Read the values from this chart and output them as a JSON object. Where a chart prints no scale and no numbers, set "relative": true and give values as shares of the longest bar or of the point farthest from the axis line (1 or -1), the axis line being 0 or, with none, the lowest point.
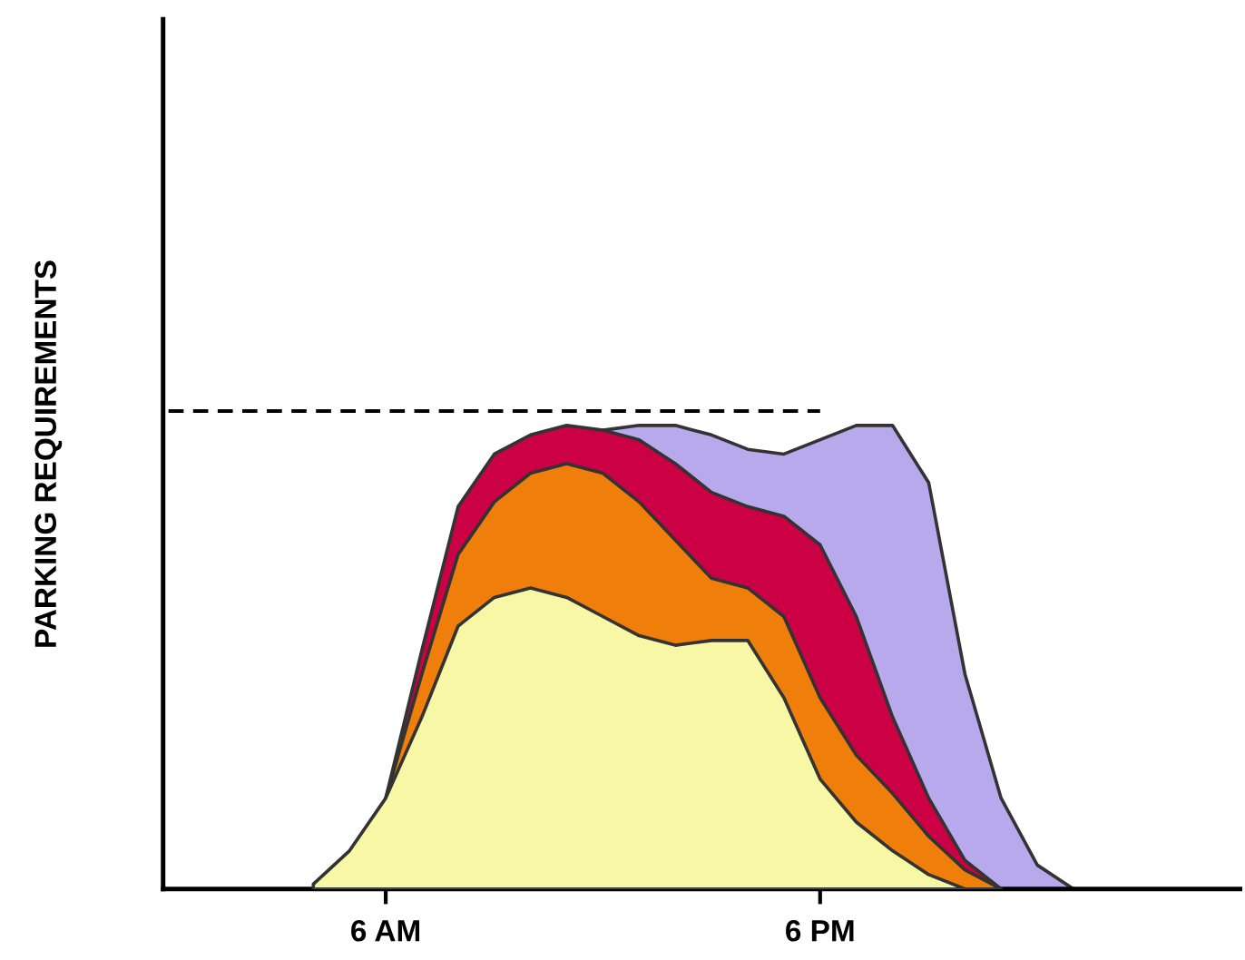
{
  "chart_data": {
    "type": "area",
    "relative": true,
    "ylabel": "PARKING REQUIREMENTS",
    "tick_labels": "x",
    "grid": false,
    "legend": false,
    "categories": [
      null,
      null,
      null,
      null,
      null,
      null,
      "6 AM",
      null,
      null,
      null,
      null,
      null,
      null,
      null,
      null,
      null,
      null,
      null,
      "6 PM",
      null,
      null,
      null,
      null,
      null,
      null,
      null,
      null,
      null,
      null,
      null
    ],
    "series": [
      {
        "color": "#b8a8ec",
        "values": [
          null,
          null,
          null,
          null,
          null,
          null,
          null,
          null,
          null,
          null,
          null,
          null,
          0.96,
          0.97,
          0.97,
          0.95,
          0.92,
          0.91,
          0.94,
          0.97,
          0.97,
          0.85,
          0.45,
          0.19,
          0.05,
          0,
          null,
          null,
          null,
          null
        ]
      },
      {
        "color": "#cc0044",
        "values": [
          null,
          null,
          null,
          null,
          null,
          null,
          0.19,
          0.5,
          0.8,
          0.91,
          0.95,
          0.97,
          0.96,
          0.94,
          0.89,
          0.83,
          0.8,
          0.78,
          0.72,
          0.57,
          0.36,
          0.19,
          0.06,
          0,
          null,
          null,
          null,
          null,
          null,
          null
        ]
      },
      {
        "color": "#f07e0a",
        "values": [
          null,
          null,
          null,
          null,
          null,
          null,
          0.19,
          0.45,
          0.7,
          0.81,
          0.87,
          0.89,
          0.87,
          0.81,
          0.73,
          0.65,
          0.63,
          0.57,
          0.4,
          0.28,
          0.2,
          0.11,
          0.04,
          0,
          null,
          null,
          null,
          null,
          null,
          null
        ]
      },
      {
        "color": "#f7f7a6",
        "values": [
          null,
          null,
          null,
          null,
          0.01,
          0.08,
          0.19,
          0.36,
          0.55,
          0.61,
          0.63,
          0.61,
          0.57,
          0.53,
          0.51,
          0.52,
          0.52,
          0.4,
          0.23,
          0.14,
          0.08,
          0.03,
          0,
          null,
          null,
          null,
          null,
          null,
          null,
          null
        ]
      },
      {
        "type": "line",
        "color": "#000000",
        "line_style": "dashed",
        "values": [
          1,
          1,
          1,
          1,
          1,
          1,
          1,
          1,
          1,
          1,
          1,
          1,
          1,
          1,
          1,
          1,
          1,
          1,
          1,
          null,
          null,
          null,
          null,
          null,
          null,
          null,
          null,
          null,
          null,
          null
        ]
      }
    ]
  }
}
